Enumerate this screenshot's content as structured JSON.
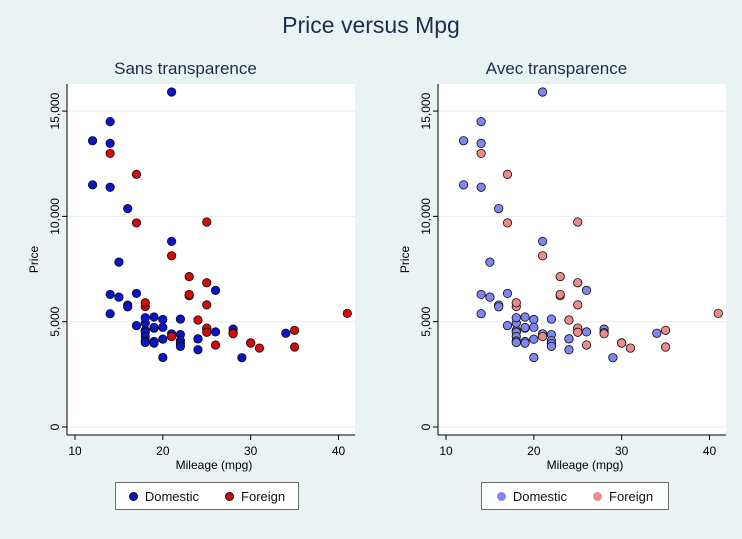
{
  "main_title": "Price versus Mpg",
  "legend": {
    "domestic": "Domestic",
    "foreign": "Foreign"
  },
  "colors": {
    "domestic": "#0a14cc",
    "foreign": "#d50a0a",
    "domestic_transparent": "#7f86f0",
    "foreign_transparent": "#ef8a8a",
    "background": "#eaf2f3",
    "plot_area": "#ffffff"
  },
  "chart_data": [
    {
      "type": "scatter",
      "title": "Sans transparence",
      "xlabel": "Mileage (mpg)",
      "ylabel": "Price",
      "xlim": [
        10,
        41
      ],
      "ylim": [
        0,
        15906
      ],
      "xticks": [
        10,
        20,
        30,
        40
      ],
      "yticks": [
        0,
        5000,
        10000,
        15000
      ],
      "ytick_labels": [
        "0",
        "5,000",
        "10,000",
        "15,000"
      ],
      "grid": "horizontal",
      "transparency": false,
      "legend_position": "bottom",
      "series": [
        {
          "name": "Domestic",
          "points": [
            [
              12,
              11497
            ],
            [
              12,
              13594
            ],
            [
              14,
              13466
            ],
            [
              14,
              14500
            ],
            [
              14,
              11385
            ],
            [
              14,
              6295
            ],
            [
              14,
              5379
            ],
            [
              15,
              6165
            ],
            [
              15,
              7827
            ],
            [
              16,
              5788
            ],
            [
              16,
              5705
            ],
            [
              16,
              10371
            ],
            [
              17,
              6342
            ],
            [
              17,
              4816
            ],
            [
              18,
              4589
            ],
            [
              18,
              4504
            ],
            [
              18,
              4934
            ],
            [
              18,
              5189
            ],
            [
              18,
              4296
            ],
            [
              18,
              4082
            ],
            [
              18,
              4010
            ],
            [
              19,
              4060
            ],
            [
              19,
              3984
            ],
            [
              19,
              4697
            ],
            [
              19,
              5222
            ],
            [
              19,
              4723
            ],
            [
              20,
              5104
            ],
            [
              20,
              4733
            ],
            [
              20,
              4172
            ],
            [
              20,
              3299
            ],
            [
              21,
              4425
            ],
            [
              21,
              15906
            ],
            [
              21,
              8814
            ],
            [
              22,
              4389
            ],
            [
              22,
              4099
            ],
            [
              22,
              3955
            ],
            [
              22,
              3829
            ],
            [
              22,
              5124
            ],
            [
              24,
              4187
            ],
            [
              24,
              3667
            ],
            [
              24,
              4187
            ],
            [
              25,
              4649
            ],
            [
              26,
              4516
            ],
            [
              26,
              6486
            ],
            [
              28,
              4647
            ],
            [
              28,
              4482
            ],
            [
              29,
              3291
            ],
            [
              34,
              4453
            ]
          ]
        },
        {
          "name": "Foreign",
          "points": [
            [
              14,
              12990
            ],
            [
              17,
              11995
            ],
            [
              17,
              9690
            ],
            [
              18,
              5719
            ],
            [
              18,
              5899
            ],
            [
              21,
              8129
            ],
            [
              21,
              4296
            ],
            [
              23,
              6229
            ],
            [
              23,
              6295
            ],
            [
              23,
              7140
            ],
            [
              24,
              5079
            ],
            [
              25,
              9735
            ],
            [
              25,
              5799
            ],
            [
              25,
              6850
            ],
            [
              25,
              4697
            ],
            [
              25,
              4499
            ],
            [
              26,
              3895
            ],
            [
              28,
              4425
            ],
            [
              30,
              3995
            ],
            [
              30,
              3984
            ],
            [
              31,
              3748
            ],
            [
              35,
              4589
            ],
            [
              35,
              3798
            ],
            [
              41,
              5397
            ]
          ]
        }
      ]
    },
    {
      "type": "scatter",
      "title": "Avec transparence",
      "xlabel": "Mileage (mpg)",
      "ylabel": "Price",
      "xlim": [
        10,
        41
      ],
      "ylim": [
        0,
        15906
      ],
      "xticks": [
        10,
        20,
        30,
        40
      ],
      "yticks": [
        0,
        5000,
        10000,
        15000
      ],
      "ytick_labels": [
        "0",
        "5,000",
        "10,000",
        "15,000"
      ],
      "grid": "horizontal",
      "transparency": true,
      "legend_position": "bottom",
      "series": [
        {
          "name": "Domestic",
          "points": [
            [
              12,
              11497
            ],
            [
              12,
              13594
            ],
            [
              14,
              13466
            ],
            [
              14,
              14500
            ],
            [
              14,
              11385
            ],
            [
              14,
              6295
            ],
            [
              14,
              5379
            ],
            [
              15,
              6165
            ],
            [
              15,
              7827
            ],
            [
              16,
              5788
            ],
            [
              16,
              5705
            ],
            [
              16,
              10371
            ],
            [
              17,
              6342
            ],
            [
              17,
              4816
            ],
            [
              18,
              4589
            ],
            [
              18,
              4504
            ],
            [
              18,
              4934
            ],
            [
              18,
              5189
            ],
            [
              18,
              4296
            ],
            [
              18,
              4082
            ],
            [
              18,
              4010
            ],
            [
              19,
              4060
            ],
            [
              19,
              3984
            ],
            [
              19,
              4697
            ],
            [
              19,
              5222
            ],
            [
              19,
              4723
            ],
            [
              20,
              5104
            ],
            [
              20,
              4733
            ],
            [
              20,
              4172
            ],
            [
              20,
              3299
            ],
            [
              21,
              4425
            ],
            [
              21,
              15906
            ],
            [
              21,
              8814
            ],
            [
              22,
              4389
            ],
            [
              22,
              4099
            ],
            [
              22,
              3955
            ],
            [
              22,
              3829
            ],
            [
              22,
              5124
            ],
            [
              24,
              4187
            ],
            [
              24,
              3667
            ],
            [
              24,
              4187
            ],
            [
              25,
              4649
            ],
            [
              26,
              4516
            ],
            [
              26,
              6486
            ],
            [
              28,
              4647
            ],
            [
              28,
              4482
            ],
            [
              29,
              3291
            ],
            [
              34,
              4453
            ]
          ]
        },
        {
          "name": "Foreign",
          "points": [
            [
              14,
              12990
            ],
            [
              17,
              11995
            ],
            [
              17,
              9690
            ],
            [
              18,
              5719
            ],
            [
              18,
              5899
            ],
            [
              21,
              8129
            ],
            [
              21,
              4296
            ],
            [
              23,
              6229
            ],
            [
              23,
              6295
            ],
            [
              23,
              7140
            ],
            [
              24,
              5079
            ],
            [
              25,
              9735
            ],
            [
              25,
              5799
            ],
            [
              25,
              6850
            ],
            [
              25,
              4697
            ],
            [
              25,
              4499
            ],
            [
              26,
              3895
            ],
            [
              28,
              4425
            ],
            [
              30,
              3995
            ],
            [
              30,
              3984
            ],
            [
              31,
              3748
            ],
            [
              35,
              4589
            ],
            [
              35,
              3798
            ],
            [
              41,
              5397
            ]
          ]
        }
      ]
    }
  ]
}
